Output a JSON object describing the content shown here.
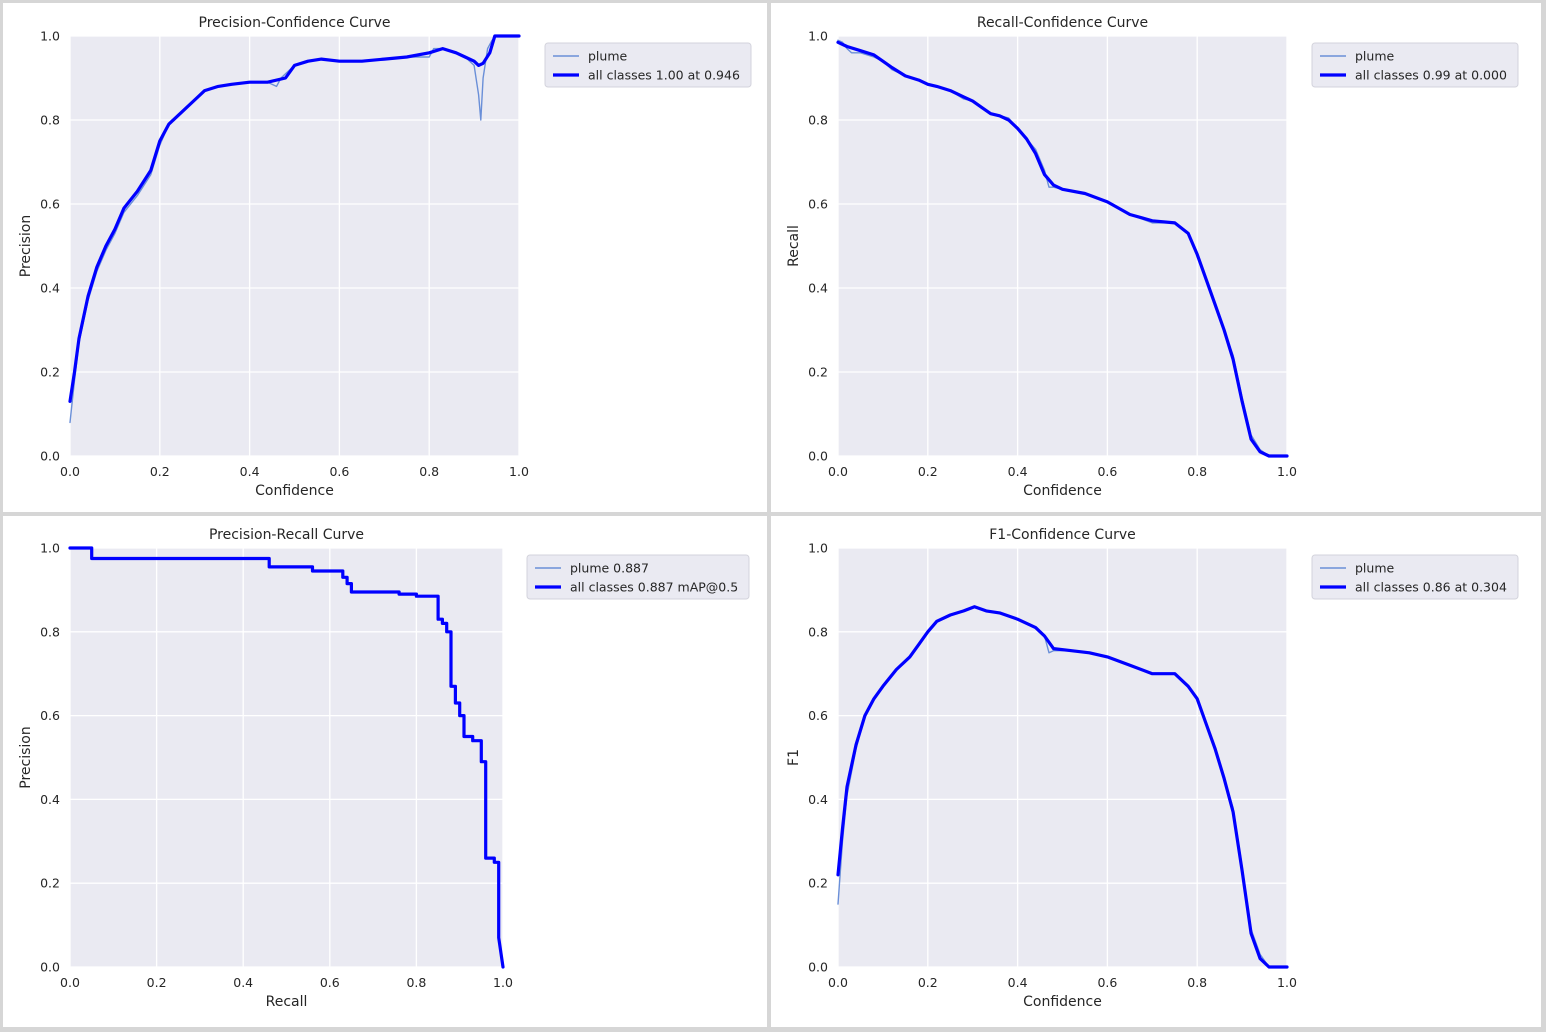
{
  "chart_data": [
    {
      "type": "line",
      "title": "Precision-Confidence Curve",
      "xlabel": "Confidence",
      "ylabel": "Precision",
      "xlim": [
        0,
        1
      ],
      "ylim": [
        0,
        1
      ],
      "xticks": [
        "0.0",
        "0.2",
        "0.4",
        "0.6",
        "0.8",
        "1.0"
      ],
      "yticks": [
        "0.0",
        "0.2",
        "0.4",
        "0.6",
        "0.8",
        "1.0"
      ],
      "grid": true,
      "legend": "outside-top-right",
      "series": [
        {
          "name": "plume",
          "color": "#6a8fd8",
          "x": [
            0.0,
            0.01,
            0.02,
            0.04,
            0.06,
            0.08,
            0.1,
            0.12,
            0.15,
            0.18,
            0.2,
            0.22,
            0.25,
            0.28,
            0.3,
            0.33,
            0.36,
            0.4,
            0.44,
            0.46,
            0.47,
            0.5,
            0.53,
            0.56,
            0.6,
            0.65,
            0.7,
            0.75,
            0.8,
            0.81,
            0.83,
            0.86,
            0.88,
            0.9,
            0.91,
            0.915,
            0.92,
            0.93,
            0.94,
            0.95,
            0.96,
            1.0
          ],
          "y": [
            0.08,
            0.18,
            0.27,
            0.37,
            0.44,
            0.49,
            0.53,
            0.58,
            0.62,
            0.67,
            0.74,
            0.79,
            0.82,
            0.85,
            0.87,
            0.88,
            0.885,
            0.89,
            0.89,
            0.88,
            0.9,
            0.93,
            0.94,
            0.945,
            0.94,
            0.94,
            0.945,
            0.95,
            0.95,
            0.97,
            0.97,
            0.96,
            0.95,
            0.93,
            0.86,
            0.8,
            0.9,
            0.97,
            0.99,
            1.0,
            1.0,
            1.0
          ]
        },
        {
          "name": "all classes 1.00 at 0.946",
          "color": "#0000ff",
          "x": [
            0.0,
            0.01,
            0.02,
            0.04,
            0.06,
            0.08,
            0.1,
            0.12,
            0.15,
            0.18,
            0.2,
            0.22,
            0.25,
            0.28,
            0.3,
            0.33,
            0.36,
            0.4,
            0.44,
            0.48,
            0.5,
            0.53,
            0.56,
            0.6,
            0.65,
            0.7,
            0.75,
            0.8,
            0.83,
            0.86,
            0.88,
            0.9,
            0.91,
            0.92,
            0.935,
            0.946,
            1.0
          ],
          "y": [
            0.13,
            0.2,
            0.28,
            0.38,
            0.45,
            0.5,
            0.54,
            0.59,
            0.63,
            0.68,
            0.75,
            0.79,
            0.82,
            0.85,
            0.87,
            0.88,
            0.885,
            0.89,
            0.89,
            0.9,
            0.93,
            0.94,
            0.945,
            0.94,
            0.94,
            0.945,
            0.95,
            0.96,
            0.97,
            0.96,
            0.95,
            0.94,
            0.93,
            0.935,
            0.96,
            1.0,
            1.0
          ]
        }
      ]
    },
    {
      "type": "line",
      "title": "Recall-Confidence Curve",
      "xlabel": "Confidence",
      "ylabel": "Recall",
      "xlim": [
        0,
        1
      ],
      "ylim": [
        0,
        1
      ],
      "xticks": [
        "0.0",
        "0.2",
        "0.4",
        "0.6",
        "0.8",
        "1.0"
      ],
      "yticks": [
        "0.0",
        "0.2",
        "0.4",
        "0.6",
        "0.8",
        "1.0"
      ],
      "grid": true,
      "legend": "outside-top-right",
      "series": [
        {
          "name": "plume",
          "color": "#6a8fd8",
          "x": [
            0.0,
            0.01,
            0.02,
            0.03,
            0.05,
            0.08,
            0.1,
            0.12,
            0.15,
            0.18,
            0.2,
            0.22,
            0.25,
            0.28,
            0.3,
            0.32,
            0.34,
            0.36,
            0.38,
            0.4,
            0.42,
            0.44,
            0.46,
            0.47,
            0.48,
            0.5,
            0.55,
            0.6,
            0.65,
            0.7,
            0.75,
            0.78,
            0.8,
            0.82,
            0.84,
            0.86,
            0.88,
            0.9,
            0.92,
            0.94,
            0.96,
            1.0
          ],
          "y": [
            0.99,
            0.985,
            0.97,
            0.96,
            0.96,
            0.95,
            0.94,
            0.92,
            0.905,
            0.895,
            0.885,
            0.88,
            0.87,
            0.85,
            0.845,
            0.83,
            0.815,
            0.81,
            0.805,
            0.78,
            0.755,
            0.73,
            0.68,
            0.64,
            0.64,
            0.635,
            0.625,
            0.605,
            0.575,
            0.555,
            0.555,
            0.53,
            0.48,
            0.42,
            0.36,
            0.3,
            0.24,
            0.14,
            0.05,
            0.015,
            0.0,
            0.0
          ]
        },
        {
          "name": "all classes 0.99 at 0.000",
          "color": "#0000ff",
          "x": [
            0.0,
            0.02,
            0.05,
            0.08,
            0.1,
            0.12,
            0.15,
            0.18,
            0.2,
            0.22,
            0.25,
            0.28,
            0.3,
            0.32,
            0.34,
            0.36,
            0.38,
            0.4,
            0.42,
            0.44,
            0.46,
            0.48,
            0.5,
            0.55,
            0.6,
            0.65,
            0.7,
            0.75,
            0.78,
            0.8,
            0.82,
            0.84,
            0.86,
            0.88,
            0.9,
            0.92,
            0.94,
            0.96,
            1.0
          ],
          "y": [
            0.985,
            0.975,
            0.965,
            0.955,
            0.94,
            0.925,
            0.905,
            0.895,
            0.885,
            0.88,
            0.87,
            0.855,
            0.845,
            0.83,
            0.815,
            0.81,
            0.8,
            0.78,
            0.755,
            0.72,
            0.67,
            0.645,
            0.635,
            0.625,
            0.605,
            0.575,
            0.56,
            0.555,
            0.53,
            0.48,
            0.42,
            0.36,
            0.3,
            0.23,
            0.13,
            0.04,
            0.01,
            0.0,
            0.0
          ]
        }
      ]
    },
    {
      "type": "line",
      "title": "Precision-Recall Curve",
      "xlabel": "Recall",
      "ylabel": "Precision",
      "xlim": [
        0,
        1
      ],
      "ylim": [
        0,
        1
      ],
      "xticks": [
        "0.0",
        "0.2",
        "0.4",
        "0.6",
        "0.8",
        "1.0"
      ],
      "yticks": [
        "0.0",
        "0.2",
        "0.4",
        "0.6",
        "0.8",
        "1.0"
      ],
      "grid": true,
      "legend": "outside-top-right",
      "series": [
        {
          "name": "plume 0.887",
          "color": "#6a8fd8",
          "x": [
            0.0,
            0.05,
            0.05,
            0.46,
            0.46,
            0.56,
            0.56,
            0.63,
            0.63,
            0.64,
            0.64,
            0.65,
            0.65,
            0.76,
            0.76,
            0.8,
            0.8,
            0.85,
            0.85,
            0.86,
            0.86,
            0.87,
            0.87,
            0.88,
            0.88,
            0.89,
            0.89,
            0.9,
            0.9,
            0.91,
            0.91,
            0.93,
            0.93,
            0.95,
            0.95,
            0.96,
            0.96,
            0.98,
            0.98,
            0.99,
            0.99,
            1.0
          ],
          "y": [
            1.0,
            1.0,
            0.975,
            0.975,
            0.955,
            0.955,
            0.945,
            0.945,
            0.93,
            0.93,
            0.915,
            0.915,
            0.895,
            0.895,
            0.89,
            0.89,
            0.885,
            0.885,
            0.83,
            0.83,
            0.82,
            0.82,
            0.8,
            0.8,
            0.67,
            0.67,
            0.63,
            0.63,
            0.6,
            0.6,
            0.55,
            0.55,
            0.54,
            0.54,
            0.49,
            0.49,
            0.26,
            0.26,
            0.25,
            0.25,
            0.07,
            0.0
          ]
        },
        {
          "name": "all classes 0.887 mAP@0.5",
          "color": "#0000ff",
          "x": [
            0.0,
            0.05,
            0.05,
            0.46,
            0.46,
            0.56,
            0.56,
            0.63,
            0.63,
            0.64,
            0.64,
            0.65,
            0.65,
            0.76,
            0.76,
            0.8,
            0.8,
            0.85,
            0.85,
            0.86,
            0.86,
            0.87,
            0.87,
            0.88,
            0.88,
            0.89,
            0.89,
            0.9,
            0.9,
            0.91,
            0.91,
            0.93,
            0.93,
            0.95,
            0.95,
            0.96,
            0.96,
            0.98,
            0.98,
            0.99,
            0.99,
            1.0
          ],
          "y": [
            1.0,
            1.0,
            0.975,
            0.975,
            0.955,
            0.955,
            0.945,
            0.945,
            0.93,
            0.93,
            0.915,
            0.915,
            0.895,
            0.895,
            0.89,
            0.89,
            0.885,
            0.885,
            0.83,
            0.83,
            0.82,
            0.82,
            0.8,
            0.8,
            0.67,
            0.67,
            0.63,
            0.63,
            0.6,
            0.6,
            0.55,
            0.55,
            0.54,
            0.54,
            0.49,
            0.49,
            0.26,
            0.26,
            0.25,
            0.25,
            0.07,
            0.0
          ]
        }
      ]
    },
    {
      "type": "line",
      "title": "F1-Confidence Curve",
      "xlabel": "Confidence",
      "ylabel": "F1",
      "xlim": [
        0,
        1
      ],
      "ylim": [
        0,
        1
      ],
      "xticks": [
        "0.0",
        "0.2",
        "0.4",
        "0.6",
        "0.8",
        "1.0"
      ],
      "yticks": [
        "0.0",
        "0.2",
        "0.4",
        "0.6",
        "0.8",
        "1.0"
      ],
      "grid": true,
      "legend": "outside-top-right",
      "series": [
        {
          "name": "plume",
          "color": "#6a8fd8",
          "x": [
            0.0,
            0.01,
            0.02,
            0.04,
            0.06,
            0.08,
            0.1,
            0.13,
            0.16,
            0.18,
            0.2,
            0.22,
            0.25,
            0.28,
            0.304,
            0.33,
            0.36,
            0.4,
            0.44,
            0.46,
            0.47,
            0.48,
            0.52,
            0.56,
            0.6,
            0.65,
            0.7,
            0.75,
            0.78,
            0.8,
            0.82,
            0.84,
            0.86,
            0.88,
            0.9,
            0.92,
            0.94,
            0.96,
            1.0
          ],
          "y": [
            0.15,
            0.3,
            0.41,
            0.52,
            0.6,
            0.64,
            0.67,
            0.71,
            0.74,
            0.77,
            0.8,
            0.825,
            0.84,
            0.85,
            0.86,
            0.85,
            0.845,
            0.83,
            0.81,
            0.79,
            0.75,
            0.755,
            0.755,
            0.75,
            0.74,
            0.72,
            0.7,
            0.7,
            0.67,
            0.64,
            0.58,
            0.52,
            0.45,
            0.38,
            0.24,
            0.09,
            0.03,
            0.0,
            0.0
          ]
        },
        {
          "name": "all classes 0.86 at 0.304",
          "color": "#0000ff",
          "x": [
            0.0,
            0.01,
            0.02,
            0.04,
            0.06,
            0.08,
            0.1,
            0.13,
            0.16,
            0.18,
            0.2,
            0.22,
            0.25,
            0.28,
            0.304,
            0.33,
            0.36,
            0.4,
            0.44,
            0.46,
            0.48,
            0.52,
            0.56,
            0.6,
            0.65,
            0.7,
            0.75,
            0.78,
            0.8,
            0.82,
            0.84,
            0.86,
            0.88,
            0.9,
            0.92,
            0.94,
            0.96,
            1.0
          ],
          "y": [
            0.22,
            0.33,
            0.43,
            0.53,
            0.6,
            0.64,
            0.67,
            0.71,
            0.74,
            0.77,
            0.8,
            0.825,
            0.84,
            0.85,
            0.86,
            0.85,
            0.845,
            0.83,
            0.81,
            0.79,
            0.76,
            0.755,
            0.75,
            0.74,
            0.72,
            0.7,
            0.7,
            0.67,
            0.64,
            0.58,
            0.52,
            0.45,
            0.37,
            0.23,
            0.08,
            0.02,
            0.0,
            0.0
          ]
        }
      ]
    }
  ]
}
